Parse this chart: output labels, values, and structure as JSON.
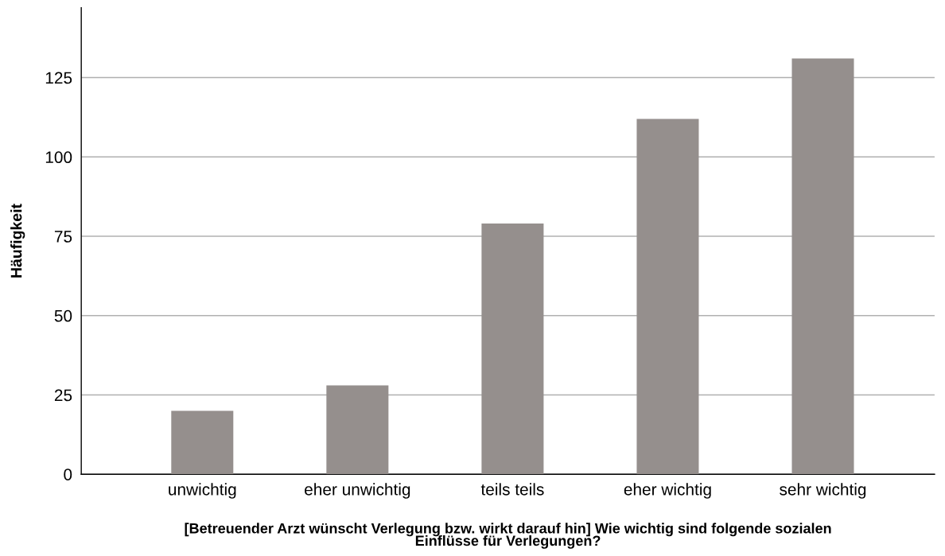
{
  "chart_data": {
    "type": "bar",
    "xlabel": "[Betreuender Arzt wünscht Verlegung bzw. wirkt darauf hin] Wie wichtig sind folgende sozialen\nEinflüsse für Verlegungen?",
    "ylabel": "Häufigkeit",
    "categories": [
      "unwichtig",
      "eher unwichtig",
      "teils teils",
      "eher wichtig",
      "sehr wichtig"
    ],
    "values": [
      20,
      28,
      79,
      112,
      131
    ],
    "color": "#958f8d",
    "ylim": [
      0,
      147
    ],
    "yticks": [
      0,
      25,
      50,
      75,
      100,
      125
    ],
    "grid": "y",
    "legend": false
  }
}
